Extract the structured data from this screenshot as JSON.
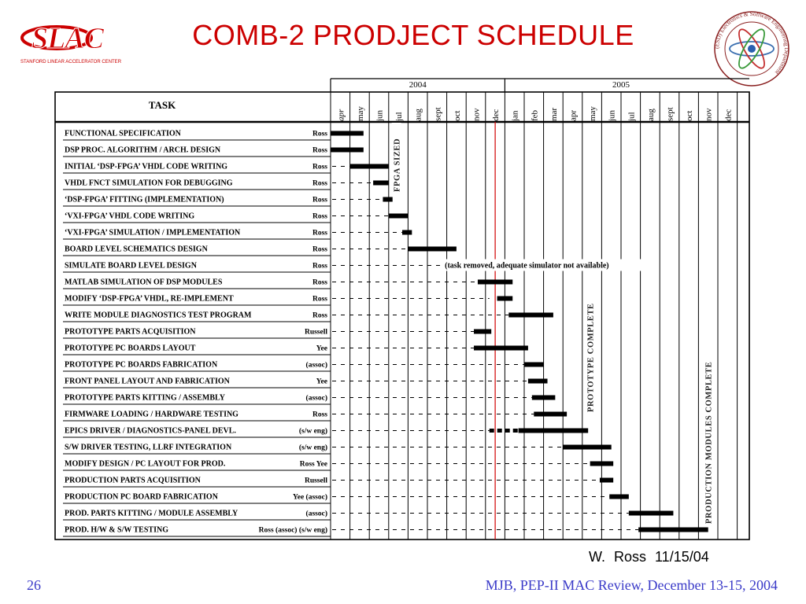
{
  "header": {
    "title": "COMB-2  PRODJECT SCHEDULE",
    "logo_text": "SLAC",
    "logo_subtitle": "STANFORD LINEAR ACCELERATOR CENTER",
    "seal_text": "(ESD) Electronics & Software Engineering Department"
  },
  "chart_data": {
    "type": "gantt",
    "task_header": "TASK",
    "years": [
      "2004",
      "2005"
    ],
    "months": [
      "apr",
      "may",
      "jun",
      "jul",
      "aug",
      "sept",
      "oct",
      "nov",
      "dec",
      "jan",
      "feb",
      "mar",
      "apr",
      "may",
      "jun",
      "jul",
      "aug",
      "sept",
      "oct",
      "nov",
      "dec"
    ],
    "milestones": [
      {
        "label": "FPGA SIZED",
        "at": 3.4
      },
      {
        "label": "PROTOTYPE COMPLETE",
        "at": 13.4
      },
      {
        "label": "PRODUCTION MODULES COMPLETE",
        "at": 19.5
      }
    ],
    "today_marker": 8.5,
    "annotation": {
      "text": "(task removed, adequate simulator not available)",
      "row": 8,
      "at": 5.9
    },
    "tasks": [
      {
        "name": "FUNCTIONAL SPECIFICATION",
        "owner": "Ross",
        "dashed_to": 0.0,
        "bars": [
          [
            0.0,
            1.7
          ]
        ]
      },
      {
        "name": "DSP PROC. ALGORITHM / ARCH. DESIGN",
        "owner": "Ross",
        "dashed_to": 0.0,
        "bars": [
          [
            0.0,
            1.7
          ]
        ]
      },
      {
        "name": "INITIAL ‘DSP-FPGA’ VHDL CODE WRITING",
        "owner": "Ross",
        "dashed_to": 1.0,
        "bars": [
          [
            1.0,
            3.0
          ]
        ]
      },
      {
        "name": "VHDL FNCT SIMULATION FOR DEBUGGING",
        "owner": "Ross",
        "dashed_to": 2.2,
        "bars": [
          [
            2.2,
            3.0
          ]
        ]
      },
      {
        "name": "‘DSP-FPGA’ FITTING (IMPLEMENTATION)",
        "owner": "Ross",
        "dashed_to": 2.7,
        "bars": [
          [
            2.7,
            3.2
          ]
        ]
      },
      {
        "name": "‘VXI-FPGA’ VHDL CODE WRITING",
        "owner": "Ross",
        "dashed_to": 3.0,
        "bars": [
          [
            3.0,
            4.0
          ]
        ]
      },
      {
        "name": "‘VXI-FPGA’ SIMULATION / IMPLEMENTATION",
        "owner": "Ross",
        "dashed_to": 3.7,
        "bars": [
          [
            3.7,
            4.2
          ]
        ]
      },
      {
        "name": "BOARD LEVEL SCHEMATICS DESIGN",
        "owner": "Ross",
        "dashed_to": 4.0,
        "bars": [
          [
            4.0,
            6.5
          ]
        ]
      },
      {
        "name": "SIMULATE BOARD LEVEL DESIGN",
        "owner": "Ross",
        "dashed_to": 5.8,
        "bars": []
      },
      {
        "name": "MATLAB SIMULATION OF DSP MODULES",
        "owner": "Ross",
        "dashed_to": 7.6,
        "bars": [
          [
            7.6,
            9.4
          ]
        ]
      },
      {
        "name": "MODIFY ‘DSP-FPGA’ VHDL, RE-IMPLEMENT",
        "owner": "Ross",
        "dashed_to": 8.2,
        "bars": [
          [
            8.6,
            9.4
          ]
        ]
      },
      {
        "name": "WRITE MODULE DIAGNOSTICS TEST PROGRAM",
        "owner": "Ross",
        "dashed_to": 9.2,
        "bars": [
          [
            9.2,
            11.5
          ]
        ]
      },
      {
        "name": "PROTOTYPE PARTS ACQUISITION",
        "owner": "Russell",
        "dashed_to": 7.4,
        "bars": [
          [
            7.4,
            8.3
          ]
        ]
      },
      {
        "name": "PROTOTYPE PC BOARDS LAYOUT",
        "owner": "Yee",
        "dashed_to": 7.4,
        "bars": [
          [
            7.4,
            10.2
          ]
        ]
      },
      {
        "name": "PROTOTYPE PC BOARDS FABRICATION",
        "owner": "(assoc)",
        "dashed_to": 10.0,
        "bars": [
          [
            10.0,
            11.0
          ]
        ]
      },
      {
        "name": "FRONT PANEL LAYOUT AND FABRICATION",
        "owner": "Yee",
        "dashed_to": 10.2,
        "bars": [
          [
            10.2,
            11.2
          ]
        ]
      },
      {
        "name": "PROTOTYPE PARTS KITTING / ASSEMBLY",
        "owner": "(assoc)",
        "dashed_to": 10.4,
        "bars": [
          [
            10.4,
            11.6
          ]
        ]
      },
      {
        "name": "FIRMWARE LOADING / HARDWARE TESTING",
        "owner": "Ross",
        "dashed_to": 10.5,
        "bars": [
          [
            10.5,
            12.2
          ]
        ]
      },
      {
        "name": "EPICS DRIVER / DIAGNOSTICS-PANEL DEVL.",
        "owner": "(s/w eng)",
        "dashed_to": 8.2,
        "dotted": [
          [
            8.2,
            9.7
          ]
        ],
        "bars": [
          [
            9.7,
            13.3
          ]
        ]
      },
      {
        "name": "S/W DRIVER TESTING, LLRF INTEGRATION",
        "owner": "(s/w eng)",
        "dashed_to": 12.0,
        "bars": [
          [
            12.0,
            14.5
          ]
        ]
      },
      {
        "name": "MODIFY DESIGN / PC LAYOUT FOR PROD.",
        "owner": "Ross  Yee",
        "dashed_to": 13.4,
        "bars": [
          [
            13.4,
            14.6
          ]
        ]
      },
      {
        "name": "PRODUCTION PARTS ACQUISITION",
        "owner": "Russell",
        "dashed_to": 13.9,
        "bars": [
          [
            13.9,
            14.6
          ]
        ]
      },
      {
        "name": "PRODUCTION PC BOARD FABRICATION",
        "owner": "Yee  (assoc)",
        "dashed_to": 14.4,
        "bars": [
          [
            14.4,
            15.4
          ]
        ]
      },
      {
        "name": "PROD. PARTS KITTING / MODULE ASSEMBLY",
        "owner": "(assoc)",
        "dashed_to": 15.4,
        "bars": [
          [
            15.4,
            17.7
          ]
        ]
      },
      {
        "name": "PROD.  H/W & S/W TESTING",
        "owner": "Ross  (assoc)  (s/w eng)",
        "dashed_to": 15.9,
        "bars": [
          [
            15.9,
            19.5
          ]
        ]
      }
    ]
  },
  "footer": {
    "author": "W. Ross   11/15/04",
    "page_number": "26",
    "citation": "MJB,  PEP-II MAC Review,  December 13-15, 2004"
  }
}
